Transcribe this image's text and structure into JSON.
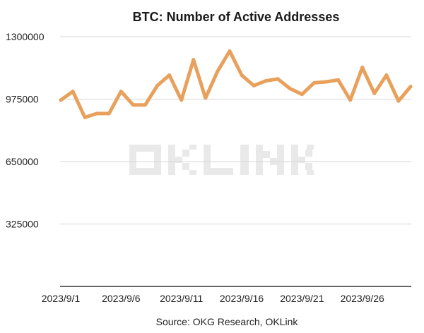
{
  "chart_data": {
    "type": "line",
    "title": "BTC: Number of Active Addresses",
    "source": "Source: OKG Research, OKLink",
    "watermark": "OKLINK",
    "x_tick_labels": [
      "2023/9/1",
      "2023/9/6",
      "2023/9/11",
      "2023/9/16",
      "2023/9/21",
      "2023/9/26"
    ],
    "x_tick_index": [
      0,
      5,
      10,
      15,
      20,
      25
    ],
    "y_ticks": [
      325000,
      650000,
      975000,
      1300000
    ],
    "y_tick_labels": [
      "325000",
      "650000",
      "975000",
      "1300000"
    ],
    "ylim": [
      0,
      1300000
    ],
    "grid": true,
    "line_color": "#E8A15C",
    "x": [
      "2023/9/1",
      "2023/9/2",
      "2023/9/3",
      "2023/9/4",
      "2023/9/5",
      "2023/9/6",
      "2023/9/7",
      "2023/9/8",
      "2023/9/9",
      "2023/9/10",
      "2023/9/11",
      "2023/9/12",
      "2023/9/13",
      "2023/9/14",
      "2023/9/15",
      "2023/9/16",
      "2023/9/17",
      "2023/9/18",
      "2023/9/19",
      "2023/9/20",
      "2023/9/21",
      "2023/9/22",
      "2023/9/23",
      "2023/9/24",
      "2023/9/25",
      "2023/9/26",
      "2023/9/27",
      "2023/9/28",
      "2023/9/29",
      "2023/9/30"
    ],
    "values": [
      970000,
      1015000,
      880000,
      900000,
      900000,
      1015000,
      945000,
      945000,
      1045000,
      1100000,
      970000,
      1180000,
      980000,
      1120000,
      1225000,
      1100000,
      1045000,
      1070000,
      1080000,
      1030000,
      1000000,
      1060000,
      1065000,
      1075000,
      970000,
      1140000,
      1005000,
      1100000,
      965000,
      1040000
    ]
  }
}
